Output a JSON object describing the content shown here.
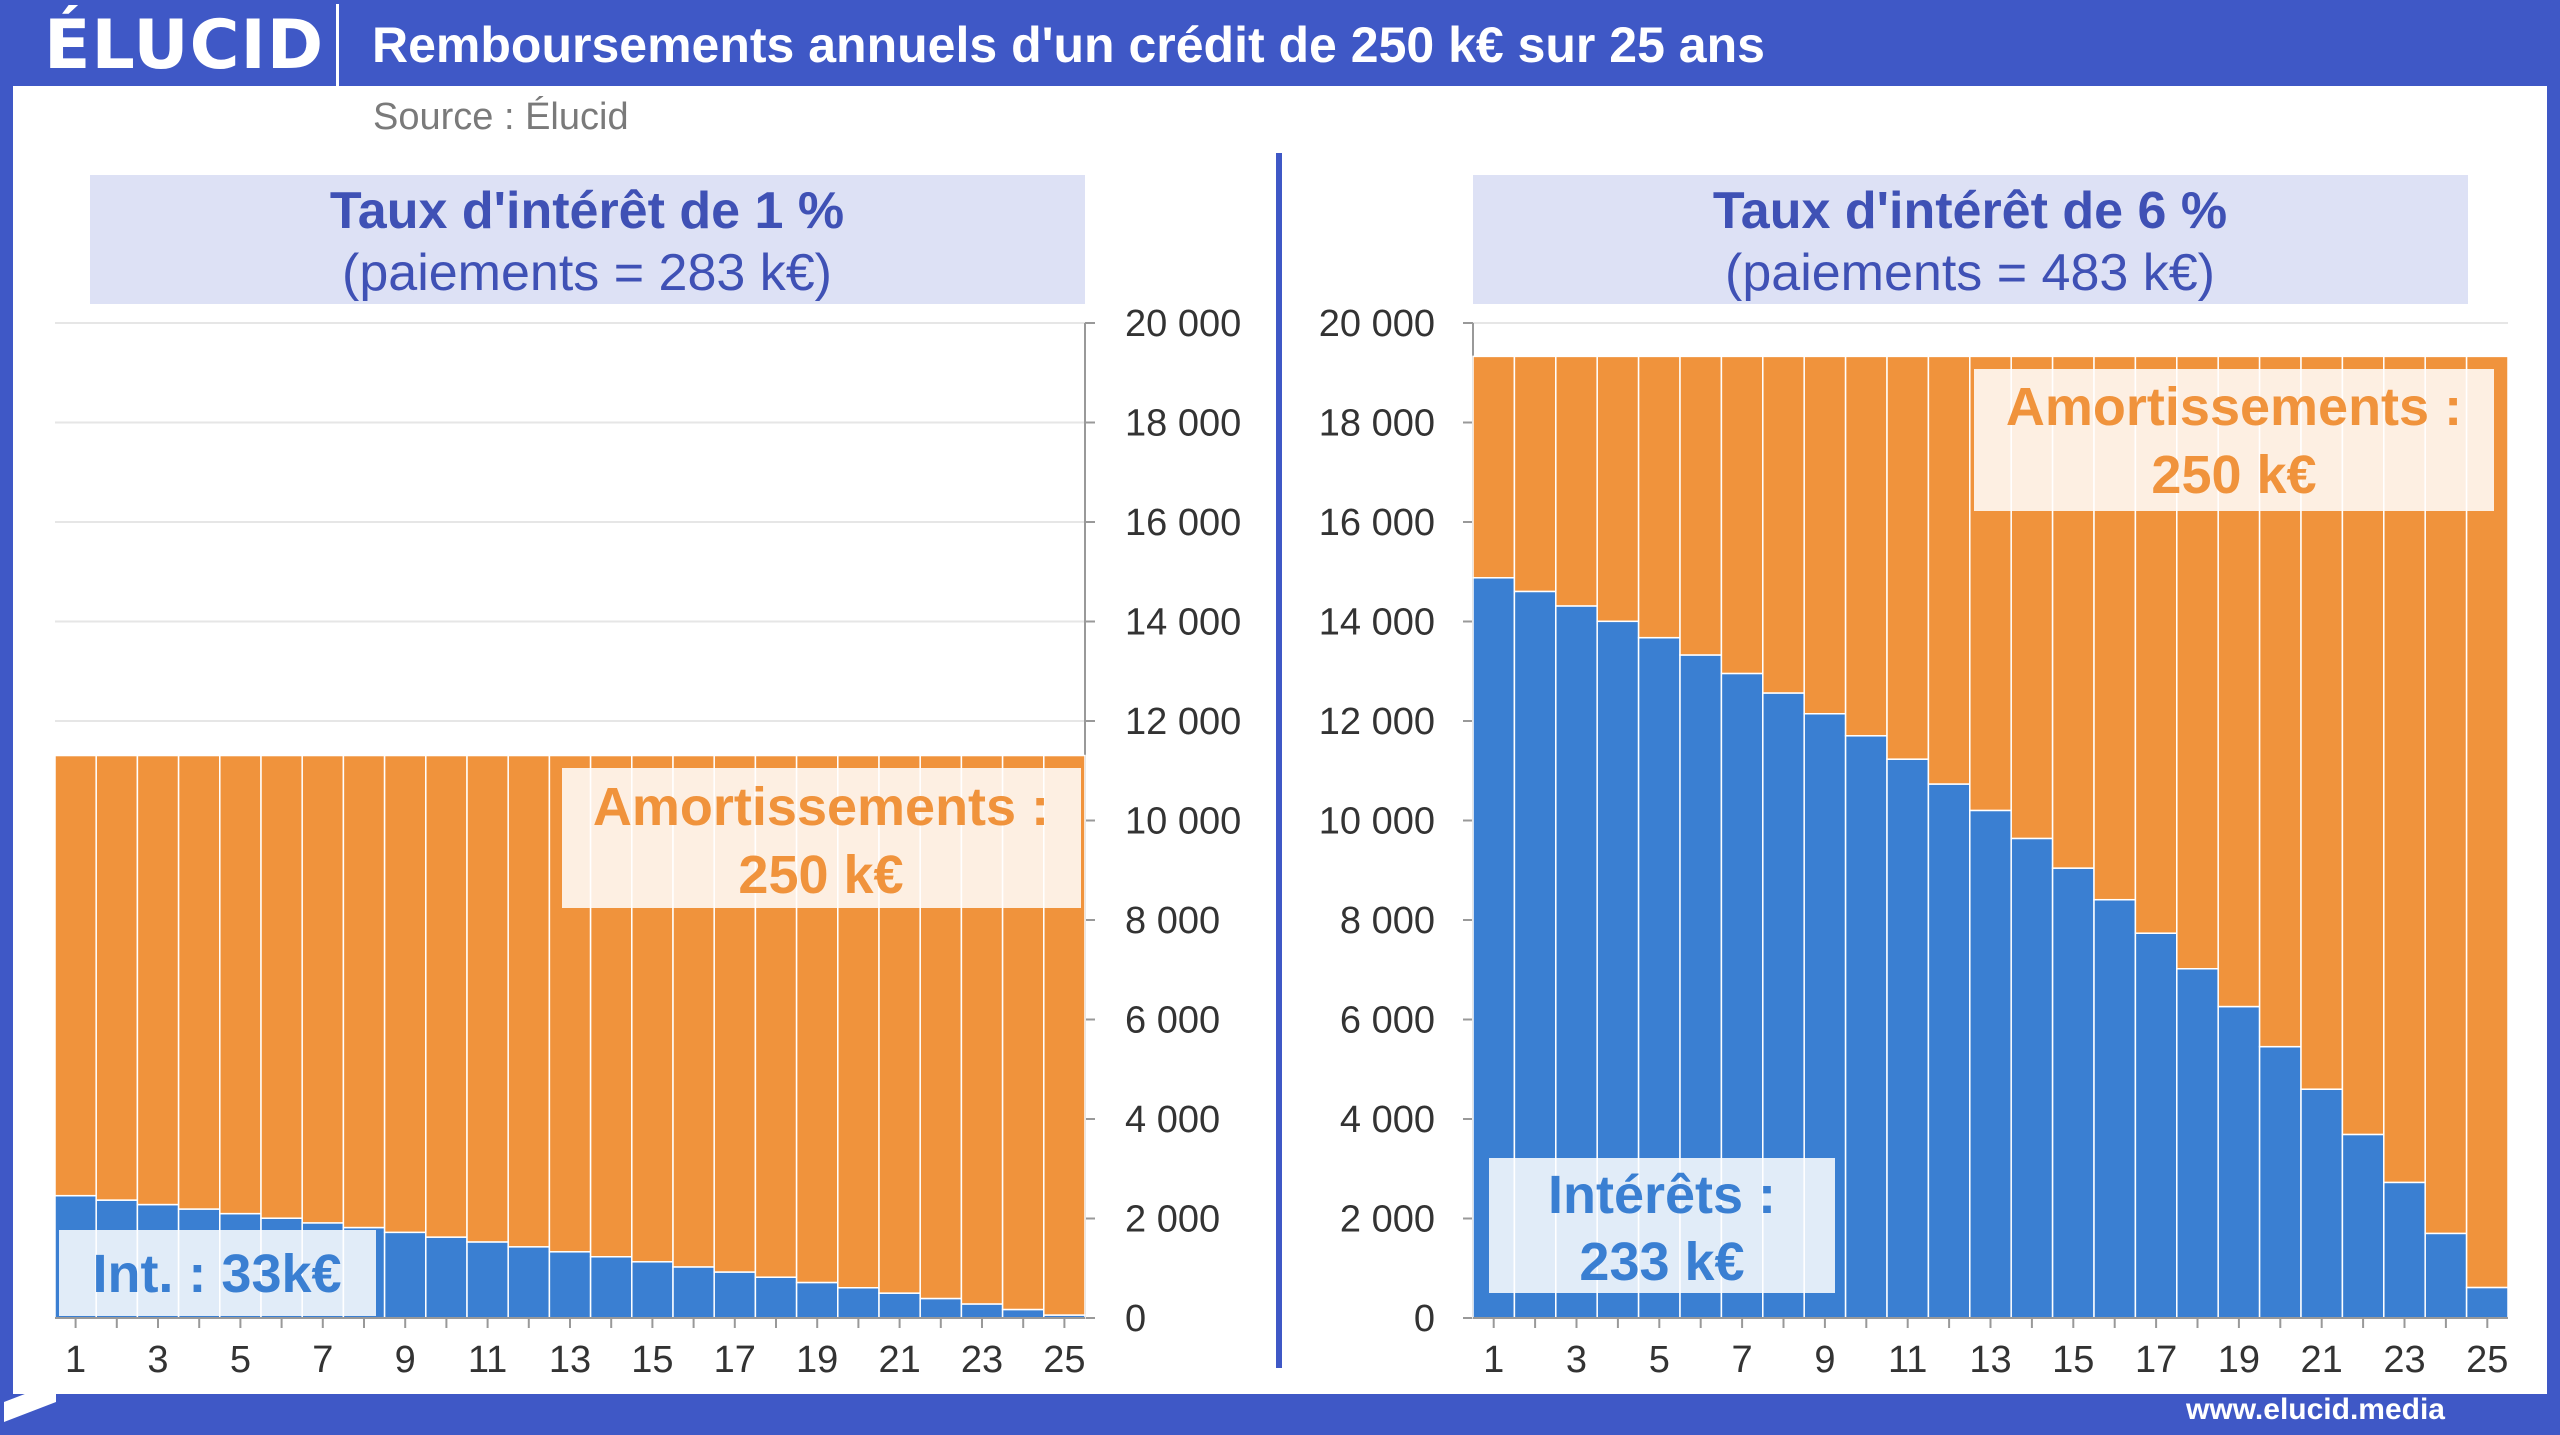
{
  "header": {
    "logo": "ÉLUCID",
    "title": "Remboursements annuels d'un crédit de 250 k€ sur 25 ans",
    "source": "Source : Élucid",
    "footer_url": "www.elucid.media"
  },
  "colors": {
    "brand": "#3f58c6",
    "interest": "#3a7fd2",
    "principal": "#f0933c",
    "title_box": "#dde1f5",
    "title_text": "#3f51b5"
  },
  "chart_data": [
    {
      "type": "bar",
      "stacked": true,
      "title": "Taux d'intérêt de 1 %",
      "subtitle": "(paiements = 283 k€)",
      "x": [
        1,
        2,
        3,
        4,
        5,
        6,
        7,
        8,
        9,
        10,
        11,
        12,
        13,
        14,
        15,
        16,
        17,
        18,
        19,
        20,
        21,
        22,
        23,
        24,
        25
      ],
      "x_tick_labels": [
        "1",
        "3",
        "5",
        "7",
        "9",
        "11",
        "13",
        "15",
        "17",
        "19",
        "21",
        "23",
        "25"
      ],
      "ylim": [
        0,
        20000
      ],
      "y_ticks": [
        "0",
        "2 000",
        "4 000",
        "6 000",
        "8 000",
        "10 000",
        "12 000",
        "14 000",
        "16 000",
        "18 000",
        "20 000"
      ],
      "y_axis_side": "right",
      "grid": true,
      "series": [
        {
          "key": "interest",
          "values": [
            2459,
            2370,
            2280,
            2190,
            2098,
            2006,
            1912,
            1818,
            1722,
            1626,
            1529,
            1431,
            1331,
            1231,
            1130,
            1027,
            924,
            820,
            714,
            608,
            500,
            392,
            282,
            171,
            59
          ]
        },
        {
          "key": "principal",
          "values": [
            8847,
            8936,
            9026,
            9116,
            9208,
            9300,
            9394,
            9488,
            9584,
            9680,
            9777,
            9875,
            9975,
            10075,
            10176,
            10279,
            10382,
            10486,
            10592,
            10698,
            10806,
            10914,
            11024,
            11135,
            11247
          ]
        }
      ],
      "annotations": {
        "principal_line1": "Amortissements :",
        "principal_line2": "250 k€",
        "interest_line1": "Int. : 33k€"
      }
    },
    {
      "type": "bar",
      "stacked": true,
      "title": "Taux d'intérêt de 6 %",
      "subtitle": "(paiements = 483 k€)",
      "x": [
        1,
        2,
        3,
        4,
        5,
        6,
        7,
        8,
        9,
        10,
        11,
        12,
        13,
        14,
        15,
        16,
        17,
        18,
        19,
        20,
        21,
        22,
        23,
        24,
        25
      ],
      "x_tick_labels": [
        "1",
        "3",
        "5",
        "7",
        "9",
        "11",
        "13",
        "15",
        "17",
        "19",
        "21",
        "23",
        "25"
      ],
      "ylim": [
        0,
        20000
      ],
      "y_ticks": [
        "0",
        "2 000",
        "4 000",
        "6 000",
        "8 000",
        "10 000",
        "12 000",
        "14 000",
        "16 000",
        "18 000",
        "20 000"
      ],
      "y_axis_side": "left",
      "grid": true,
      "series": [
        {
          "key": "interest",
          "values": [
            14879,
            14605,
            14313,
            14004,
            13675,
            13327,
            12956,
            12563,
            12146,
            11703,
            11233,
            10733,
            10203,
            9640,
            9043,
            8408,
            7735,
            7020,
            6260,
            5454,
            4599,
            3690,
            2726,
            1701,
            614
          ]
        },
        {
          "key": "principal",
          "values": [
            4450,
            4724,
            5016,
            5325,
            5654,
            6002,
            6373,
            6766,
            7183,
            7626,
            8096,
            8596,
            9126,
            9689,
            10286,
            10921,
            11594,
            12309,
            13069,
            13875,
            14730,
            15639,
            16603,
            17628,
            18715
          ]
        }
      ],
      "annotations": {
        "principal_line1": "Amortissements :",
        "principal_line2": "250 k€",
        "interest_line1": "Intérêts :",
        "interest_line2": "233 k€"
      }
    }
  ]
}
